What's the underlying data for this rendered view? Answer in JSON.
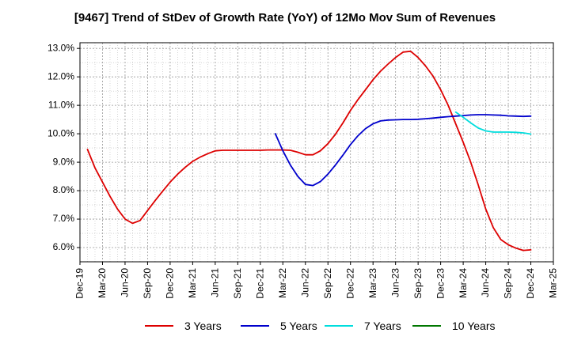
{
  "chart_data": {
    "type": "line",
    "title": "[9467]  Trend of StDev of Growth Rate (YoY) of 12Mo Mov Sum of Revenues",
    "xlabel": "",
    "ylabel": "",
    "x_ticks": [
      "Dec-19",
      "Mar-20",
      "Jun-20",
      "Sep-20",
      "Dec-20",
      "Mar-21",
      "Jun-21",
      "Sep-21",
      "Dec-21",
      "Mar-22",
      "Jun-22",
      "Sep-22",
      "Dec-22",
      "Mar-23",
      "Jun-23",
      "Sep-23",
      "Dec-23",
      "Mar-24",
      "Jun-24",
      "Sep-24",
      "Dec-24",
      "Mar-25"
    ],
    "y_ticks": [
      "6.0%",
      "7.0%",
      "8.0%",
      "9.0%",
      "10.0%",
      "11.0%",
      "12.0%",
      "13.0%"
    ],
    "ylim": [
      5.5,
      13.2
    ],
    "grid": true,
    "legend_position": "bottom",
    "series": [
      {
        "name": "3 Years",
        "color": "#dd0000",
        "values": [
          [
            "Jan-20",
            9.45
          ],
          [
            "Feb-20",
            8.8
          ],
          [
            "Mar-20",
            8.3
          ],
          [
            "Apr-20",
            7.8
          ],
          [
            "May-20",
            7.35
          ],
          [
            "Jun-20",
            7.0
          ],
          [
            "Jul-20",
            6.85
          ],
          [
            "Aug-20",
            6.95
          ],
          [
            "Sep-20",
            7.3
          ],
          [
            "Oct-20",
            7.65
          ],
          [
            "Nov-20",
            7.98
          ],
          [
            "Dec-20",
            8.3
          ],
          [
            "Jan-21",
            8.58
          ],
          [
            "Feb-21",
            8.82
          ],
          [
            "Mar-21",
            9.03
          ],
          [
            "Apr-21",
            9.18
          ],
          [
            "May-21",
            9.3
          ],
          [
            "Jun-21",
            9.4
          ],
          [
            "Jul-21",
            9.42
          ],
          [
            "Aug-21",
            9.42
          ],
          [
            "Sep-21",
            9.42
          ],
          [
            "Oct-21",
            9.42
          ],
          [
            "Nov-21",
            9.42
          ],
          [
            "Dec-21",
            9.42
          ],
          [
            "Jan-22",
            9.43
          ],
          [
            "Feb-22",
            9.43
          ],
          [
            "Mar-22",
            9.43
          ],
          [
            "Apr-22",
            9.42
          ],
          [
            "May-22",
            9.35
          ],
          [
            "Jun-22",
            9.26
          ],
          [
            "Jul-22",
            9.26
          ],
          [
            "Aug-22",
            9.4
          ],
          [
            "Sep-22",
            9.65
          ],
          [
            "Oct-22",
            9.98
          ],
          [
            "Nov-22",
            10.38
          ],
          [
            "Dec-22",
            10.82
          ],
          [
            "Jan-23",
            11.2
          ],
          [
            "Feb-23",
            11.55
          ],
          [
            "Mar-23",
            11.9
          ],
          [
            "Apr-23",
            12.2
          ],
          [
            "May-23",
            12.45
          ],
          [
            "Jun-23",
            12.68
          ],
          [
            "Jul-23",
            12.87
          ],
          [
            "Aug-23",
            12.9
          ],
          [
            "Sep-23",
            12.68
          ],
          [
            "Oct-23",
            12.38
          ],
          [
            "Nov-23",
            12.02
          ],
          [
            "Dec-23",
            11.55
          ],
          [
            "Jan-24",
            11.0
          ],
          [
            "Feb-24",
            10.35
          ],
          [
            "Mar-24",
            9.7
          ],
          [
            "Apr-24",
            9.0
          ],
          [
            "May-24",
            8.2
          ],
          [
            "Jun-24",
            7.35
          ],
          [
            "Jul-24",
            6.7
          ],
          [
            "Aug-24",
            6.28
          ],
          [
            "Sep-24",
            6.1
          ],
          [
            "Oct-24",
            5.98
          ],
          [
            "Nov-24",
            5.9
          ],
          [
            "Dec-24",
            5.92
          ]
        ]
      },
      {
        "name": "5 Years",
        "color": "#0000cc",
        "values": [
          [
            "Feb-22",
            10.0
          ],
          [
            "Mar-22",
            9.4
          ],
          [
            "Apr-22",
            8.9
          ],
          [
            "May-22",
            8.5
          ],
          [
            "Jun-22",
            8.22
          ],
          [
            "Jul-22",
            8.18
          ],
          [
            "Aug-22",
            8.32
          ],
          [
            "Sep-22",
            8.58
          ],
          [
            "Oct-22",
            8.9
          ],
          [
            "Nov-22",
            9.25
          ],
          [
            "Dec-22",
            9.62
          ],
          [
            "Jan-23",
            9.93
          ],
          [
            "Feb-23",
            10.18
          ],
          [
            "Mar-23",
            10.35
          ],
          [
            "Apr-23",
            10.45
          ],
          [
            "May-23",
            10.48
          ],
          [
            "Jun-23",
            10.49
          ],
          [
            "Jul-23",
            10.5
          ],
          [
            "Aug-23",
            10.5
          ],
          [
            "Sep-23",
            10.51
          ],
          [
            "Oct-23",
            10.53
          ],
          [
            "Nov-23",
            10.55
          ],
          [
            "Dec-23",
            10.58
          ],
          [
            "Jan-24",
            10.6
          ],
          [
            "Feb-24",
            10.62
          ],
          [
            "Mar-24",
            10.64
          ],
          [
            "Apr-24",
            10.66
          ],
          [
            "May-24",
            10.67
          ],
          [
            "Jun-24",
            10.67
          ],
          [
            "Jul-24",
            10.66
          ],
          [
            "Aug-24",
            10.65
          ],
          [
            "Sep-24",
            10.63
          ],
          [
            "Oct-24",
            10.62
          ],
          [
            "Nov-24",
            10.61
          ],
          [
            "Dec-24",
            10.62
          ]
        ]
      },
      {
        "name": "7 Years",
        "color": "#00dddd",
        "values": [
          [
            "Feb-24",
            10.76
          ],
          [
            "Mar-24",
            10.58
          ],
          [
            "Apr-24",
            10.38
          ],
          [
            "May-24",
            10.2
          ],
          [
            "Jun-24",
            10.1
          ],
          [
            "Jul-24",
            10.06
          ],
          [
            "Aug-24",
            10.06
          ],
          [
            "Sep-24",
            10.06
          ],
          [
            "Oct-24",
            10.05
          ],
          [
            "Nov-24",
            10.03
          ],
          [
            "Dec-24",
            9.99
          ]
        ]
      },
      {
        "name": "10 Years",
        "color": "#007700",
        "values": []
      }
    ]
  }
}
